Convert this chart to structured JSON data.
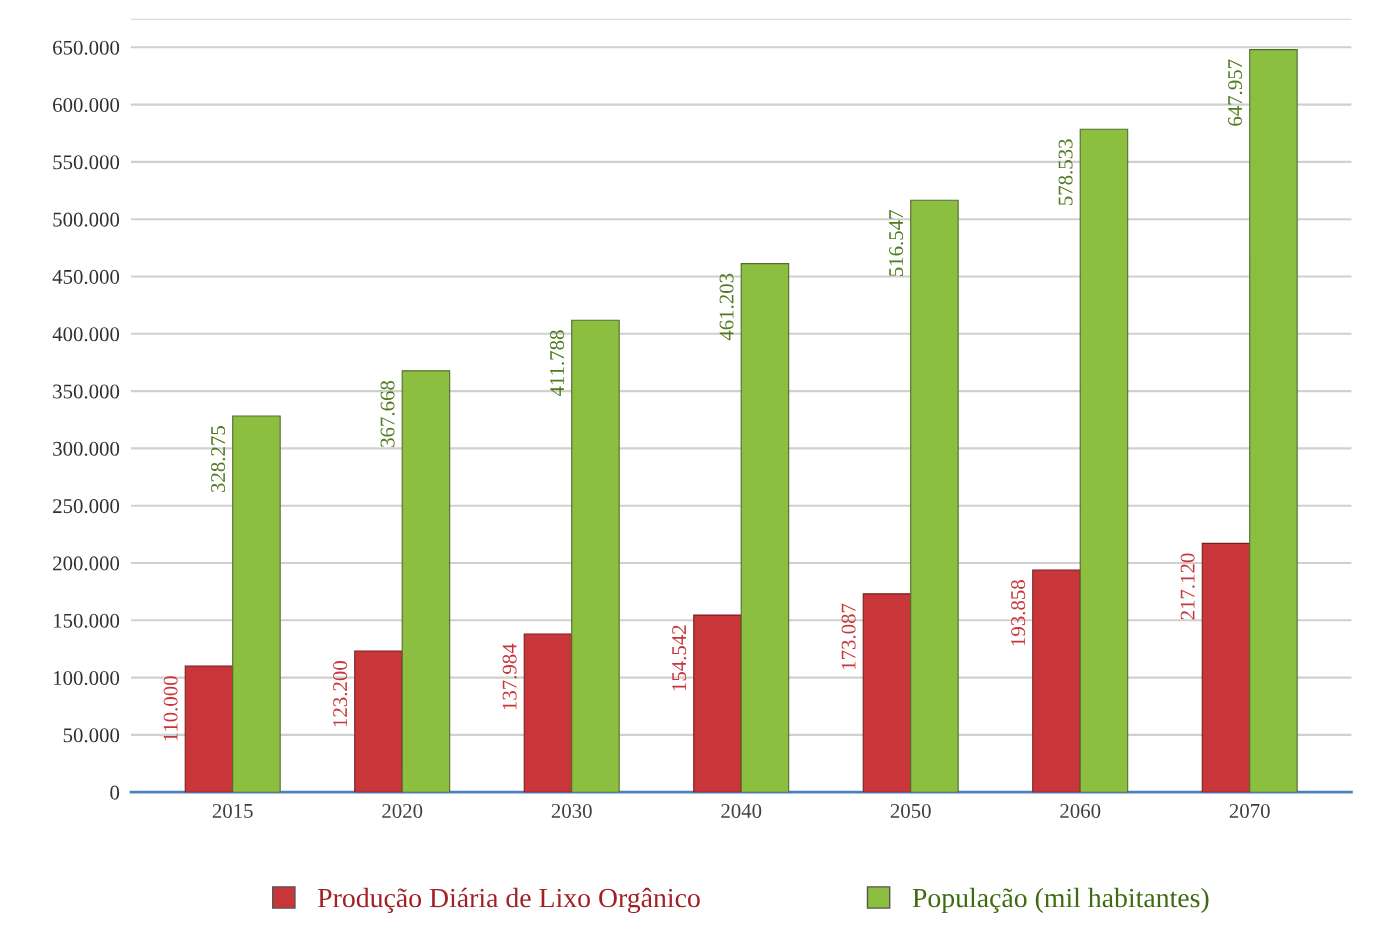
{
  "chart_data": {
    "type": "bar",
    "categories": [
      "2015",
      "2020",
      "2030",
      "2040",
      "2050",
      "2060",
      "2070"
    ],
    "series": [
      {
        "name": "Produção Diária de Lixo Orgânico",
        "color": "#c8363a",
        "values": [
          110000,
          123200,
          137984,
          154542,
          173087,
          193858,
          217120
        ],
        "value_labels": [
          "110.000",
          "123.200",
          "137.984",
          "154.542",
          "173.087",
          "193.858",
          "217.120"
        ]
      },
      {
        "name": "População (mil habitantes)",
        "color": "#8cbf3f",
        "values": [
          328275,
          367668,
          411788,
          461203,
          516547,
          578533,
          647957
        ],
        "value_labels": [
          "328.275",
          "367.668",
          "411.788",
          "461.203",
          "516.547",
          "578.533",
          "647.957"
        ]
      }
    ],
    "ylim": [
      0,
      675000
    ],
    "yticks": [
      0,
      {
        "value": 50000,
        "label": "50.000"
      },
      {
        "value": 100000,
        "label": "100.000"
      },
      {
        "value": 150000,
        "label": "150.000"
      },
      {
        "value": 200000,
        "label": "200.000"
      },
      {
        "value": 250000,
        "label": "250.000"
      },
      {
        "value": 300000,
        "label": "300.000"
      },
      {
        "value": 350000,
        "label": "350.000"
      },
      {
        "value": 400000,
        "label": "400.000"
      },
      {
        "value": 450000,
        "label": "450.000"
      },
      {
        "value": 500000,
        "label": "500.000"
      },
      {
        "value": 550000,
        "label": "550.000"
      },
      {
        "value": 600000,
        "label": "600.000"
      },
      {
        "value": 650000,
        "label": "650.000"
      },
      {
        "value": 675000,
        "label": null
      }
    ],
    "grid": "y",
    "legend": "bottom"
  }
}
